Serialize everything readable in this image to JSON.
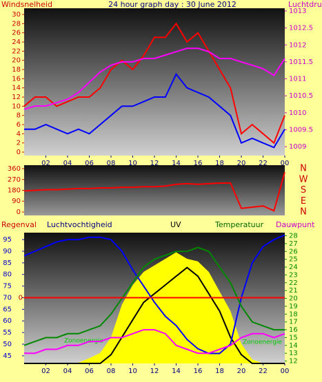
{
  "chart_data": [
    {
      "type": "line",
      "title": "24 hour graph day : 30 June 2012",
      "ylabel": "Windsnelheid",
      "y2label": "Luchtdruk",
      "x": [
        0,
        1,
        2,
        3,
        4,
        5,
        6,
        7,
        8,
        9,
        10,
        11,
        12,
        13,
        14,
        15,
        16,
        17,
        18,
        19,
        20,
        21,
        22,
        23,
        24
      ],
      "xlim": [
        0,
        24
      ],
      "xticks": [
        {
          "value": 2,
          "label": "02"
        },
        {
          "value": 4,
          "label": "04"
        },
        {
          "value": 6,
          "label": "06"
        },
        {
          "value": 8,
          "label": "08"
        },
        10,
        12,
        14,
        16,
        18,
        20,
        22,
        {
          "value": 24,
          "label": "00"
        }
      ],
      "ylim": [
        -0.75,
        31.35
      ],
      "yticks": [
        0,
        2,
        4,
        6,
        8,
        10,
        12,
        14,
        16,
        18,
        20,
        22,
        24,
        26,
        28,
        30
      ],
      "ytick_color": "#cc0000",
      "y2lim": [
        1008.74,
        1013.08
      ],
      "y2ticks": [
        1009,
        1009.5,
        1010,
        1010.5,
        1011,
        1011.5,
        1012,
        1012.5,
        1013
      ],
      "y2tick_color": "#cc00cc",
      "series": [
        {
          "color": "#ff0000",
          "values": [
            10,
            12,
            12,
            10,
            11,
            12,
            12,
            14,
            18,
            20,
            18,
            21,
            25,
            25,
            28,
            24,
            26,
            22,
            18,
            14,
            4,
            6,
            4,
            2,
            8
          ]
        },
        {
          "color": "#0000ff",
          "values": [
            5,
            5,
            6,
            5,
            4,
            5,
            4,
            6,
            8,
            10,
            10,
            11,
            12,
            12,
            17,
            14,
            13,
            12,
            10,
            8,
            2,
            3,
            2,
            1,
            5
          ]
        },
        {
          "color": "#ff00ff",
          "axis": "y2",
          "values": [
            1010.1,
            1010.2,
            1010.2,
            1010.3,
            1010.4,
            1010.6,
            1010.9,
            1011.2,
            1011.4,
            1011.5,
            1011.5,
            1011.6,
            1011.6,
            1011.7,
            1011.8,
            1011.9,
            1011.9,
            1011.8,
            1011.6,
            1011.6,
            1011.5,
            1011.4,
            1011.3,
            1011.1,
            1011.6
          ]
        }
      ]
    },
    {
      "type": "line",
      "x": [
        0,
        1,
        2,
        3,
        4,
        5,
        6,
        7,
        8,
        9,
        10,
        11,
        12,
        13,
        14,
        15,
        16,
        17,
        18,
        19,
        20,
        21,
        22,
        23,
        24
      ],
      "xlim": [
        0,
        24
      ],
      "ylim": [
        -28.6,
        388.6
      ],
      "yticks": [
        0,
        90,
        180,
        270,
        360
      ],
      "ytick_color": "#cc0000",
      "direction_labels": [
        "N",
        "W",
        "S",
        "E",
        "N"
      ],
      "series": [
        {
          "color": "#ff0000",
          "values": [
            175,
            180,
            185,
            185,
            190,
            195,
            195,
            200,
            200,
            205,
            205,
            210,
            210,
            215,
            230,
            235,
            230,
            235,
            240,
            240,
            30,
            40,
            50,
            10,
            330
          ]
        }
      ]
    },
    {
      "type": "line",
      "x": [
        0,
        1,
        2,
        3,
        4,
        5,
        6,
        7,
        8,
        9,
        10,
        11,
        12,
        13,
        14,
        15,
        16,
        17,
        18,
        19,
        20,
        21,
        22,
        23,
        24
      ],
      "xlim": [
        0,
        24
      ],
      "xticks": [
        {
          "value": 2,
          "label": "02"
        },
        {
          "value": 4,
          "label": "04"
        },
        {
          "value": 6,
          "label": "06"
        },
        {
          "value": 8,
          "label": "08"
        },
        10,
        12,
        14,
        16,
        18,
        20,
        22,
        {
          "value": 24,
          "label": "00"
        }
      ],
      "ylim": [
        41.7,
        98
      ],
      "yticks": [
        45,
        50,
        55,
        60,
        65,
        70,
        75,
        80,
        85,
        90,
        95
      ],
      "ytick_color": "#0000cc",
      "y2lim": [
        11.7,
        28.4
      ],
      "y2ticks": [
        12,
        13,
        14,
        15,
        16,
        17,
        18,
        19,
        20,
        21,
        22,
        23,
        24,
        25,
        26,
        27,
        28
      ],
      "y2tick_color": "#008800",
      "rainlim": [
        -10,
        9.9
      ],
      "rainticks": [
        0
      ],
      "uvlim": [
        0,
        7.5
      ],
      "solarlim": [
        0,
        1000
      ],
      "series": [
        {
          "name": "Zonoenergie",
          "color": "#ffff00",
          "label_color": "#00cc00",
          "axis": "solar",
          "fill": true,
          "values": [
            0,
            0,
            0,
            0,
            0,
            5,
            40,
            80,
            200,
            450,
            600,
            700,
            750,
            800,
            850,
            800,
            780,
            700,
            550,
            400,
            150,
            30,
            0,
            0,
            0
          ]
        },
        {
          "name": "UV",
          "color": "#000000",
          "axis": "uv",
          "values": [
            0,
            0,
            0,
            0,
            0,
            0,
            0,
            0,
            0.5,
            1.5,
            2.5,
            3.5,
            4,
            4.5,
            5,
            5.5,
            5,
            4,
            3,
            1.5,
            0.5,
            0,
            0,
            0,
            0
          ]
        },
        {
          "name": "Luchtvochtigheid",
          "color": "#0000ff",
          "values": [
            88,
            90,
            92,
            94,
            95,
            95,
            96,
            96,
            95,
            90,
            82,
            75,
            68,
            62,
            58,
            52,
            48,
            46,
            46,
            50,
            70,
            85,
            92,
            95,
            97
          ]
        },
        {
          "name": "Temperatuur",
          "color": "#008800",
          "axis": "y2",
          "values": [
            14,
            14.5,
            15,
            15,
            15.5,
            15.5,
            16,
            16.5,
            18,
            20,
            22,
            24,
            25,
            25.5,
            26,
            26,
            26.5,
            26,
            24,
            22,
            19,
            17,
            16.5,
            16,
            16
          ]
        },
        {
          "name": "Dauwpunt",
          "color": "#ff00ff",
          "axis": "y2",
          "values": [
            13,
            13,
            13.5,
            13.5,
            14,
            14,
            14.5,
            14.5,
            15,
            15,
            15.5,
            16,
            16,
            15.5,
            14,
            13.5,
            13,
            13,
            13.5,
            14,
            15,
            15.5,
            15.5,
            15,
            15.5
          ]
        },
        {
          "name": "Regenval",
          "color": "#ff0000",
          "axis": "rain",
          "values": [
            0,
            0,
            0,
            0,
            0,
            0,
            0,
            0,
            0,
            0,
            0,
            0,
            0,
            0,
            0,
            0,
            0,
            0,
            0,
            0,
            0,
            0,
            0,
            0,
            0
          ]
        }
      ]
    }
  ]
}
